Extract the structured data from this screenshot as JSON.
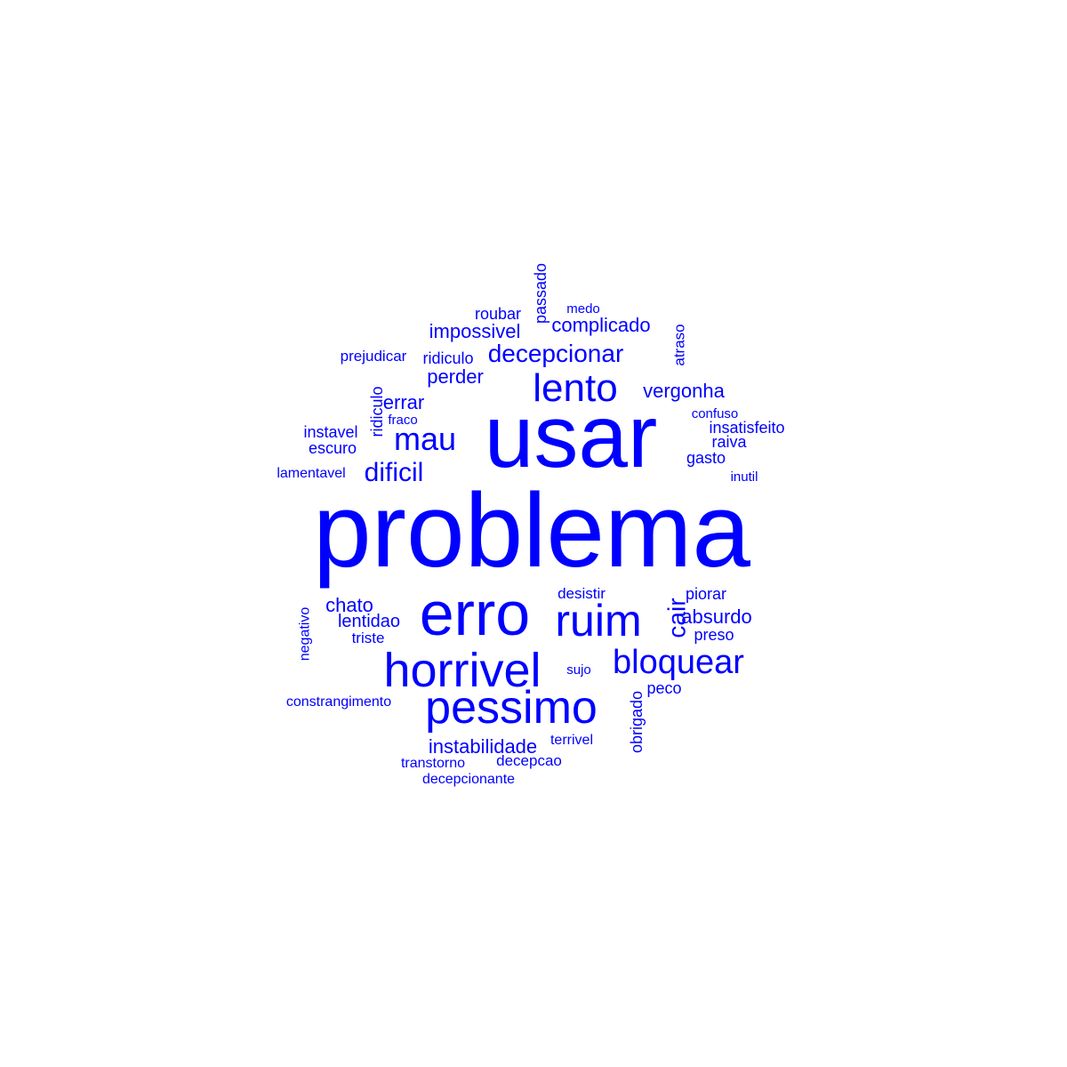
{
  "text_color": "#0000ff",
  "background_color": "#ffffff",
  "words": [
    {
      "text": "problema"
    },
    {
      "text": "usar"
    },
    {
      "text": "erro"
    },
    {
      "text": "horrivel"
    },
    {
      "text": "pessimo"
    },
    {
      "text": "ruim"
    },
    {
      "text": "lento"
    },
    {
      "text": "bloquear"
    },
    {
      "text": "mau"
    },
    {
      "text": "decepcionar"
    },
    {
      "text": "dificil"
    },
    {
      "text": "cair"
    },
    {
      "text": "instabilidade"
    },
    {
      "text": "chato"
    },
    {
      "text": "absurdo"
    },
    {
      "text": "vergonha"
    },
    {
      "text": "errar"
    },
    {
      "text": "complicado"
    },
    {
      "text": "impossivel"
    },
    {
      "text": "perder"
    },
    {
      "text": "lentidao"
    },
    {
      "text": "ridiculo"
    },
    {
      "text": "ridiculo"
    },
    {
      "text": "insatisfeito"
    },
    {
      "text": "instavel"
    },
    {
      "text": "escuro"
    },
    {
      "text": "roubar"
    },
    {
      "text": "passado"
    },
    {
      "text": "obrigado"
    },
    {
      "text": "gasto"
    },
    {
      "text": "piorar"
    },
    {
      "text": "preso"
    },
    {
      "text": "peco"
    },
    {
      "text": "raiva"
    },
    {
      "text": "prejudicar"
    },
    {
      "text": "desistir"
    },
    {
      "text": "atraso"
    },
    {
      "text": "decepcao"
    },
    {
      "text": "triste"
    },
    {
      "text": "lamentavel"
    },
    {
      "text": "negativo"
    },
    {
      "text": "transtorno"
    },
    {
      "text": "constrangimento"
    },
    {
      "text": "decepcionante"
    },
    {
      "text": "terrivel"
    },
    {
      "text": "medo"
    },
    {
      "text": "confuso"
    },
    {
      "text": "inutil"
    },
    {
      "text": "sujo"
    },
    {
      "text": "fraco"
    }
  ]
}
